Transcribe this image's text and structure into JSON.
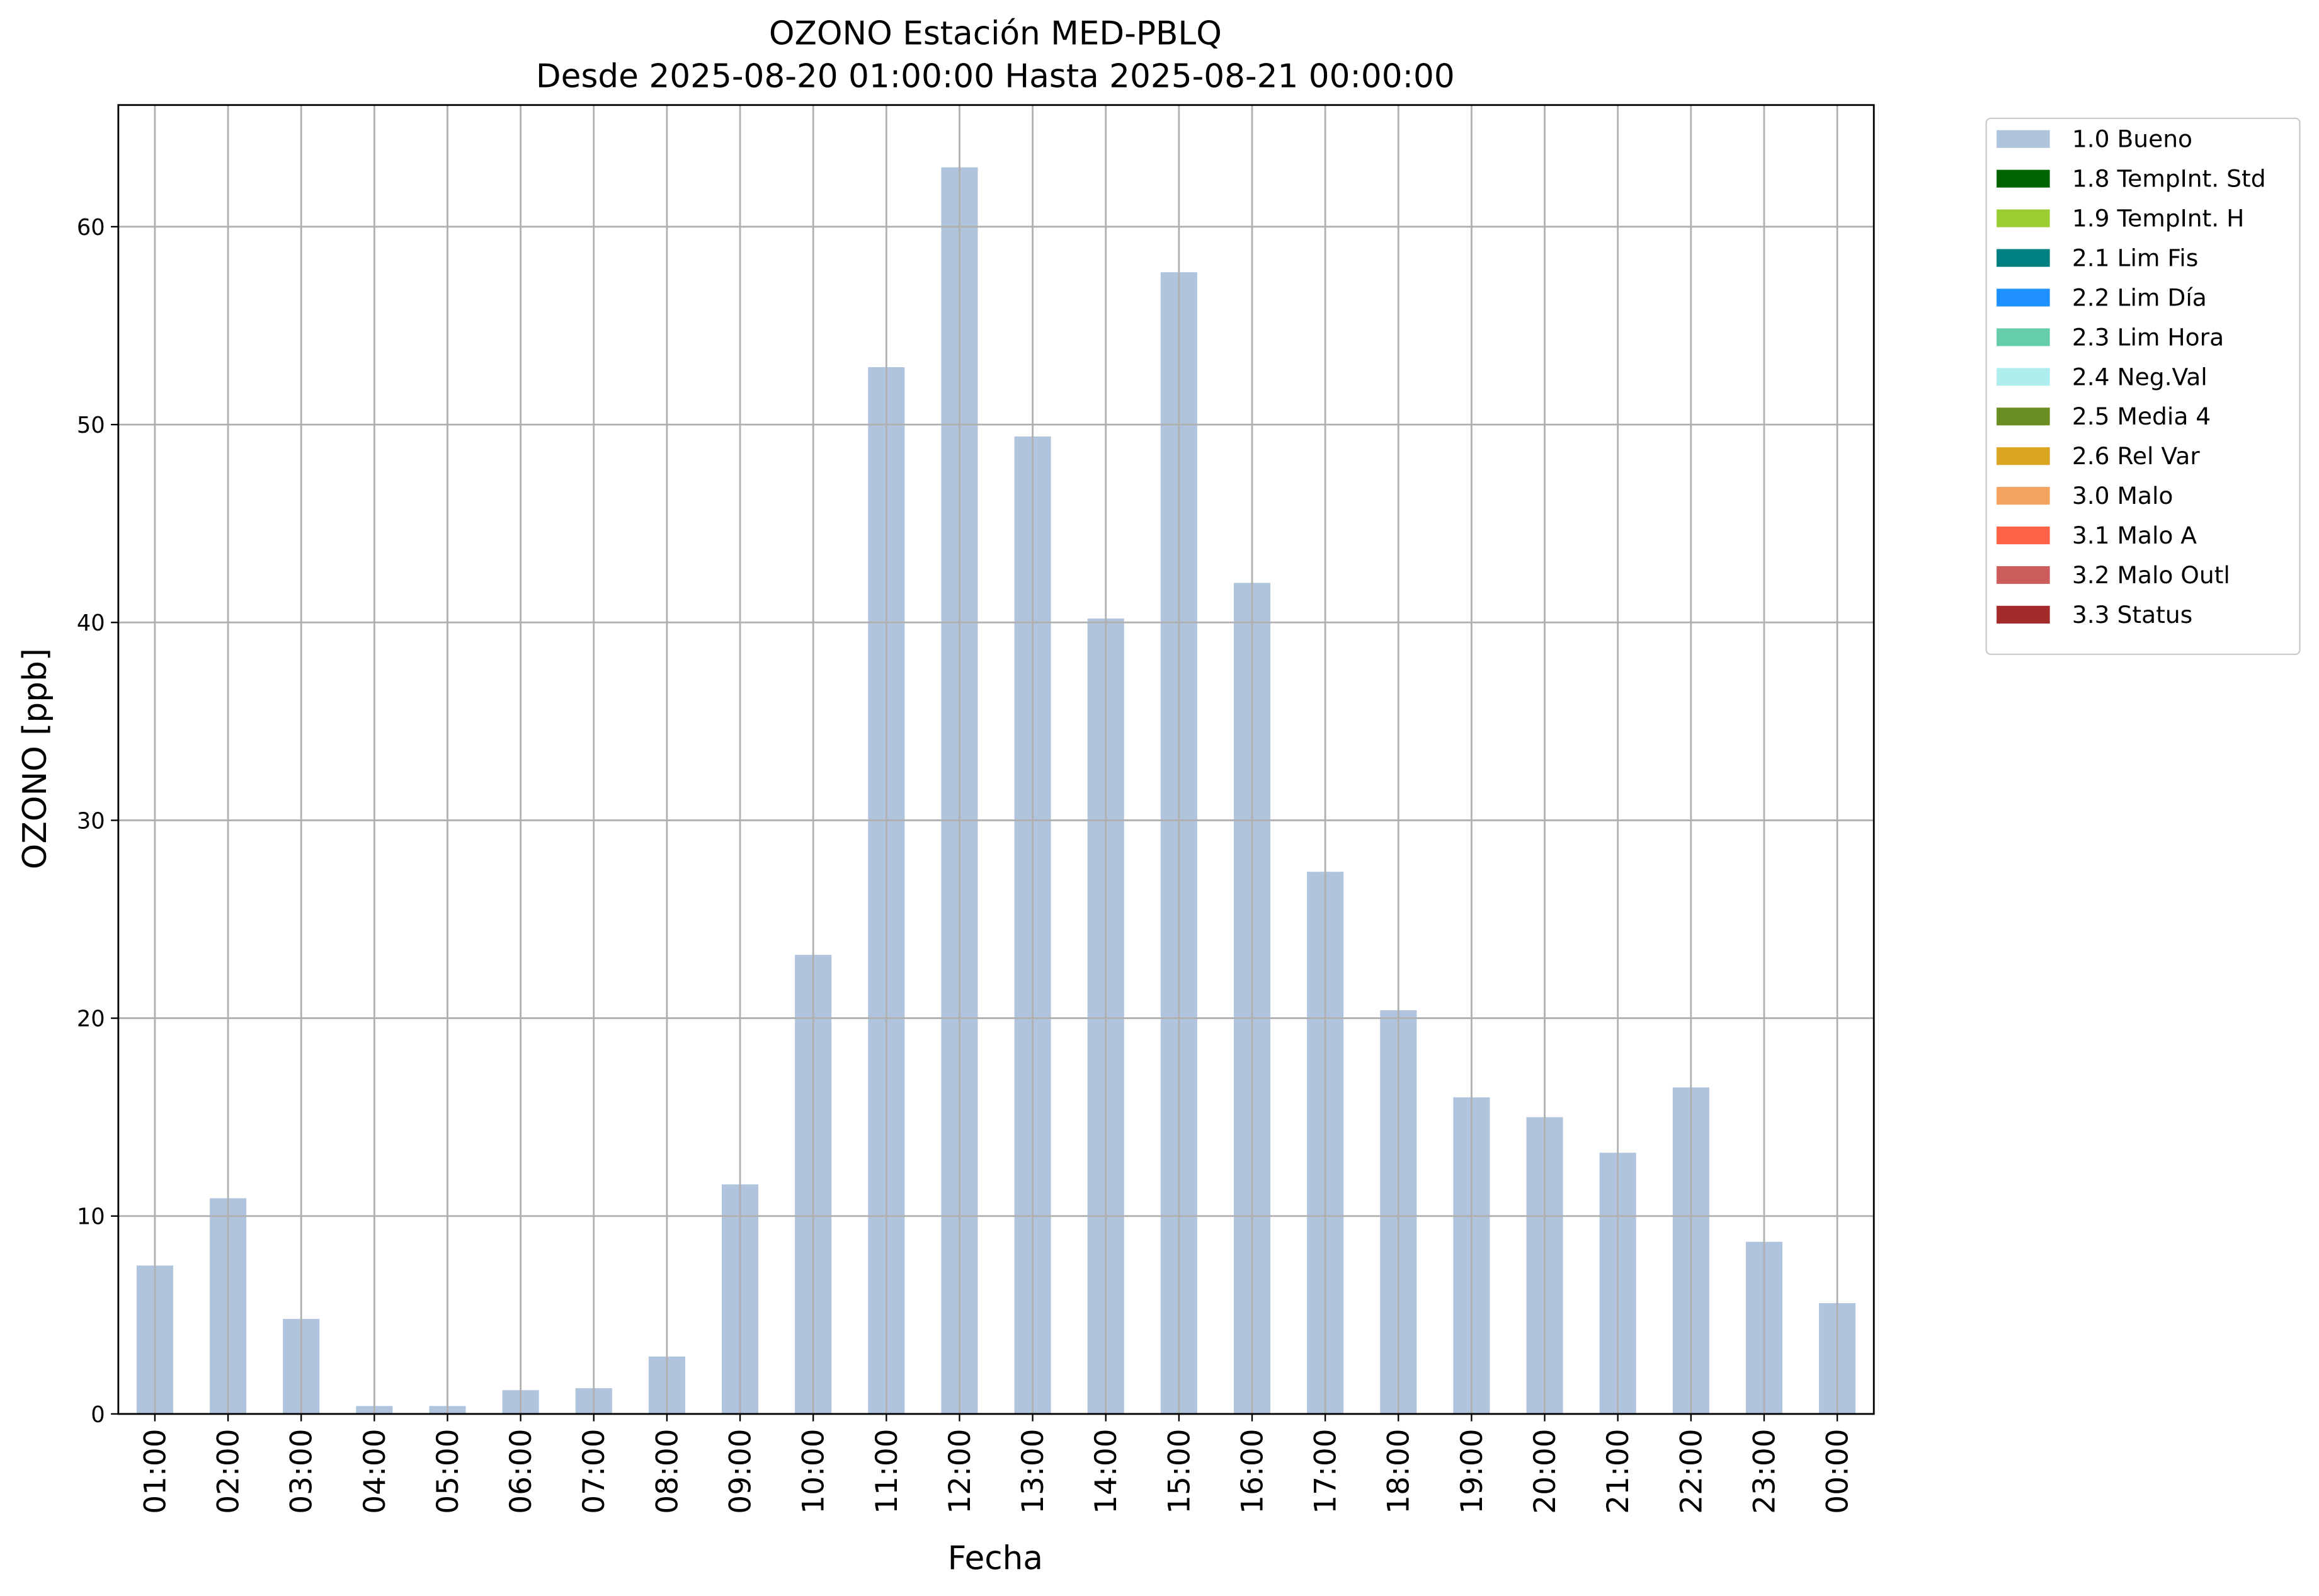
{
  "chart_data": {
    "type": "bar",
    "title": "OZONO Estación MED-PBLQ",
    "subtitle": "Desde 2025-08-20 01:00:00 Hasta 2025-08-21 00:00:00",
    "x_label": "Fecha",
    "y_label": "OZONO [ppb]",
    "categories": [
      "01:00",
      "02:00",
      "03:00",
      "04:00",
      "05:00",
      "06:00",
      "07:00",
      "08:00",
      "09:00",
      "10:00",
      "11:00",
      "12:00",
      "13:00",
      "14:00",
      "15:00",
      "16:00",
      "17:00",
      "18:00",
      "19:00",
      "20:00",
      "21:00",
      "22:00",
      "23:00",
      "00:00"
    ],
    "series": [
      {
        "name": "1.0 Bueno",
        "color": "#b0c4de",
        "values": [
          7.5,
          10.9,
          4.8,
          0.4,
          0.4,
          1.2,
          1.3,
          2.9,
          11.6,
          23.2,
          52.9,
          63.0,
          49.4,
          40.2,
          57.7,
          42.0,
          27.4,
          20.4,
          16.0,
          15.0,
          13.2,
          16.5,
          8.7,
          5.6
        ]
      }
    ],
    "legend_entries": [
      {
        "name": "1.8 TempInt. Std",
        "color": "#006400"
      },
      {
        "name": "1.9 TempInt. H",
        "color": "#9acd32"
      },
      {
        "name": "2.1 Lim Fis",
        "color": "#008080"
      },
      {
        "name": "2.2 Lim Día",
        "color": "#1e90ff"
      },
      {
        "name": "2.3 Lim Hora",
        "color": "#66cdaa"
      },
      {
        "name": "2.4 Neg.Val",
        "color": "#afeeee"
      },
      {
        "name": "2.5 Media 4",
        "color": "#6b8e23"
      },
      {
        "name": "2.6 Rel Var",
        "color": "#daa520"
      },
      {
        "name": "3.0 Malo",
        "color": "#f4a460"
      },
      {
        "name": "3.1 Malo A",
        "color": "#ff6347"
      },
      {
        "name": "3.2 Malo Outl",
        "color": "#cd5c5c"
      },
      {
        "name": "3.3 Status",
        "color": "#a52a2a"
      }
    ],
    "ylim": [
      0,
      66.15
    ],
    "yticks": [
      0,
      10,
      20,
      30,
      40,
      50,
      60
    ],
    "grid": true,
    "legend_position": "outside-upper-right"
  }
}
